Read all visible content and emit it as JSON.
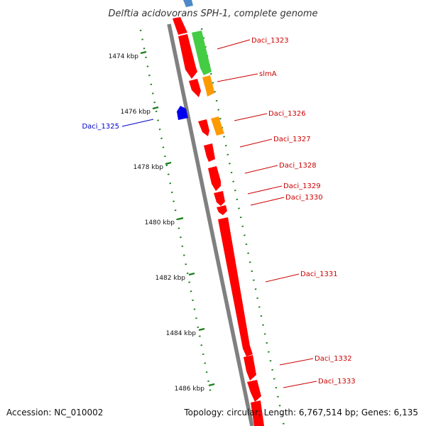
{
  "title": "Delftia acidovorans SPH-1, complete genome",
  "accession_text": "Accession: NC_010002",
  "summary_text": "Topology: circular; Length: 6,767,514 bp; Genes: 6,135",
  "colors": {
    "backbone": "#808080",
    "ruler": "#1a7f1a",
    "gene_red": "#ff0000",
    "gene_green": "#44cc44",
    "gene_orange": "#ff9900",
    "gene_blue": "#0000ee",
    "gene_lightblue": "#4d88c8",
    "label_red": "#cc0000",
    "label_blue": "#0000cc"
  },
  "ruler": {
    "tick_labels": [
      "1474 kbp",
      "1476 kbp",
      "1478 kbp",
      "1480 kbp",
      "1482 kbp",
      "1484 kbp",
      "1486 kbp"
    ]
  },
  "gene_labels": [
    {
      "text": "Daci_1323",
      "strand": "forward"
    },
    {
      "text": "slmA",
      "strand": "forward"
    },
    {
      "text": "Daci_1325",
      "strand": "reverse"
    },
    {
      "text": "Daci_1326",
      "strand": "forward"
    },
    {
      "text": "Daci_1327",
      "strand": "forward"
    },
    {
      "text": "Daci_1328",
      "strand": "forward"
    },
    {
      "text": "Daci_1329",
      "strand": "forward"
    },
    {
      "text": "Daci_1330",
      "strand": "forward"
    },
    {
      "text": "Daci_1331",
      "strand": "forward"
    },
    {
      "text": "Daci_1332",
      "strand": "forward"
    },
    {
      "text": "Daci_1333",
      "strand": "forward"
    }
  ]
}
